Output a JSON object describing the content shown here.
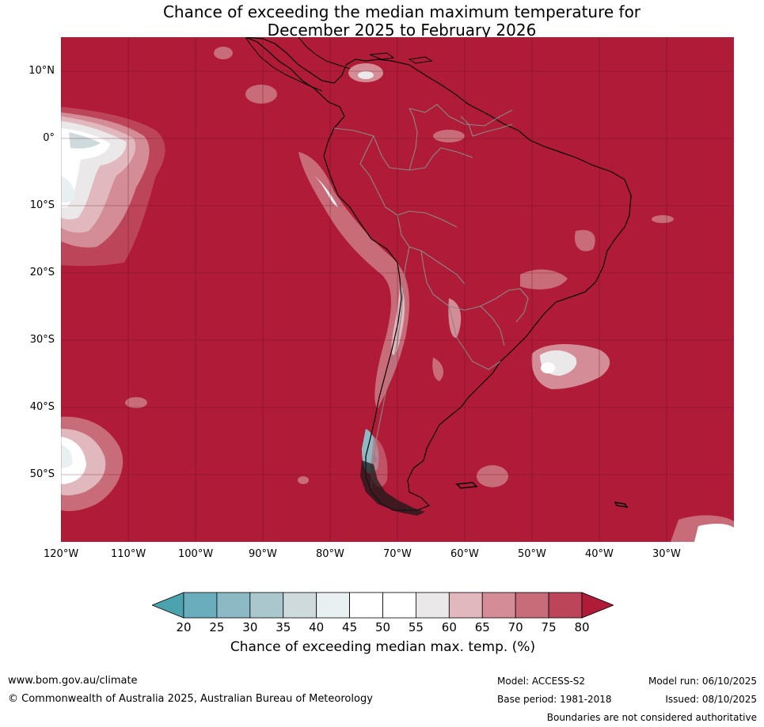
{
  "title_line1": "Chance of exceeding the median maximum temperature for",
  "title_line2": "December 2025 to February 2026",
  "lat_labels": [
    "10°N",
    "0°",
    "10°S",
    "20°S",
    "30°S",
    "40°S",
    "50°S"
  ],
  "lon_labels": [
    "120°W",
    "110°W",
    "100°W",
    "90°W",
    "80°W",
    "70°W",
    "60°W",
    "50°W",
    "40°W",
    "30°W"
  ],
  "colorbar": {
    "ticks": [
      "20",
      "25",
      "30",
      "35",
      "40",
      "45",
      "50",
      "55",
      "60",
      "65",
      "70",
      "75",
      "80"
    ],
    "colors": [
      "#4ba3b0",
      "#6aaebd",
      "#8db9c5",
      "#a9c7cd",
      "#cfdadd",
      "#e9f0f2",
      "#ffffff",
      "#ffffff",
      "#ebe8ea",
      "#e2b8bf",
      "#d48d97",
      "#c86c7a",
      "#bd4559",
      "#b01b37"
    ],
    "label": "Chance of exceeding median max. temp. (%)"
  },
  "legend_colors": {
    "dominant": "#b01b37",
    "land_outline": "#000000",
    "border": "#888888"
  },
  "footer": {
    "website": "www.bom.gov.au/climate",
    "copyright": "© Commonwealth of Australia 2025, Australian Bureau of Meteorology",
    "model": "Model: ACCESS-S2",
    "model_run": "Model run: 06/10/2025",
    "base_period": "Base period: 1981-2018",
    "issued": "Issued: 08/10/2025",
    "disclaimer": "Boundaries are not considered authoritative"
  }
}
